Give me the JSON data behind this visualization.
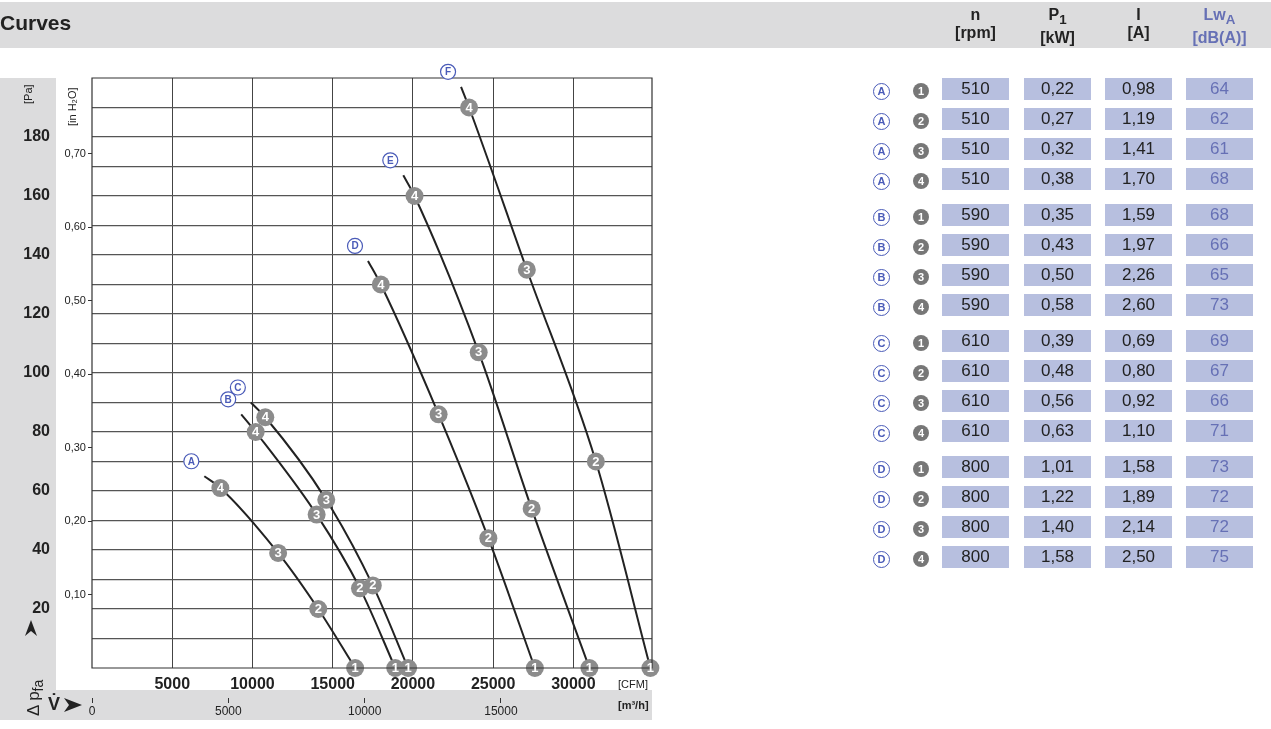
{
  "chart_data": [
    {
      "type": "line",
      "title": "Curves",
      "xlabel": "V̇",
      "ylabel": "Δ p$_{fa}$",
      "x2label": "[CFM]",
      "y2label": "[in H₂O]",
      "annotations": [
        "[Pa]",
        "[m³/h]",
        {
          "text": "4",
          "x": 8000,
          "y": 61
        },
        {
          "text": "3",
          "x": 11600,
          "y": 39
        },
        {
          "text": "2",
          "x": 14100,
          "y": 20
        },
        {
          "text": "1",
          "x": 16400,
          "y": 0
        },
        {
          "text": "4",
          "x": 10200,
          "y": 80
        },
        {
          "text": "3",
          "x": 14000,
          "y": 52
        },
        {
          "text": "2",
          "x": 16700,
          "y": 27
        },
        {
          "text": "1",
          "x": 18900,
          "y": 0
        },
        {
          "text": "4",
          "x": 10800,
          "y": 85
        },
        {
          "text": "3",
          "x": 14600,
          "y": 57
        },
        {
          "text": "2",
          "x": 17500,
          "y": 28
        },
        {
          "text": "1",
          "x": 19700,
          "y": 0
        },
        {
          "text": "4",
          "x": 18000,
          "y": 130
        },
        {
          "text": "3",
          "x": 21600,
          "y": 86
        },
        {
          "text": "2",
          "x": 24700,
          "y": 44
        },
        {
          "text": "1",
          "x": 27600,
          "y": 0
        },
        {
          "text": "4",
          "x": 20100,
          "y": 160
        },
        {
          "text": "3",
          "x": 24100,
          "y": 107
        },
        {
          "text": "2",
          "x": 27400,
          "y": 54
        },
        {
          "text": "1",
          "x": 31000,
          "y": 0
        },
        {
          "text": "4",
          "x": 23500,
          "y": 190
        },
        {
          "text": "3",
          "x": 27100,
          "y": 135
        },
        {
          "text": "2",
          "x": 31400,
          "y": 70
        },
        {
          "text": "1",
          "x": 34800,
          "y": 0
        }
      ],
      "xlim": [
        0,
        34900
      ],
      "xticks": [
        5000,
        10000,
        15000,
        20000,
        25000,
        30000
      ],
      "x2lim": [
        0,
        20540
      ],
      "x2ticks": [
        0,
        5000,
        10000,
        15000
      ],
      "ylim": [
        0,
        200
      ],
      "yticks": [
        {
          "value": 10,
          "label": null
        },
        20,
        {
          "value": 30,
          "label": null
        },
        40,
        {
          "value": 50,
          "label": null
        },
        60,
        {
          "value": 70,
          "label": null
        },
        80,
        {
          "value": 90,
          "label": null
        },
        100,
        {
          "value": 110,
          "label": null
        },
        120,
        {
          "value": 130,
          "label": null
        },
        140,
        {
          "value": 150,
          "label": null
        },
        160,
        {
          "value": 170,
          "label": null
        },
        180,
        {
          "value": 190,
          "label": null
        }
      ],
      "y2lim": [
        0,
        0.803
      ],
      "y2ticks": [
        {
          "value": 0.1,
          "label": "0,10"
        },
        {
          "value": 0.2,
          "label": "0,20"
        },
        {
          "value": 0.3,
          "label": "0,30"
        },
        {
          "value": 0.4,
          "label": "0,40"
        },
        {
          "value": 0.5,
          "label": "0,50"
        },
        {
          "value": 0.6,
          "label": "0,60"
        },
        {
          "value": 0.7,
          "label": "0,70"
        }
      ],
      "grid": true,
      "legend": false,
      "marker": "circle",
      "line_style": "solid",
      "series": [
        {
          "name": "A",
          "color": "#222222",
          "x": [
            7000,
            8000,
            11600,
            14100,
            16400
          ],
          "values": [
            65,
            61,
            39,
            20,
            0
          ]
        },
        {
          "name": "B",
          "color": "#222222",
          "x": [
            9300,
            10200,
            14000,
            16700,
            18900
          ],
          "values": [
            86,
            80,
            52,
            27,
            0
          ]
        },
        {
          "name": "C",
          "color": "#222222",
          "x": [
            9900,
            10800,
            14600,
            17500,
            19700
          ],
          "values": [
            90,
            85,
            57,
            28,
            0
          ]
        },
        {
          "name": "D",
          "color": "#222222",
          "x": [
            17200,
            18000,
            21600,
            24700,
            27600
          ],
          "values": [
            138,
            130,
            86,
            44,
            0
          ]
        },
        {
          "name": "E",
          "color": "#222222",
          "x": [
            19400,
            20100,
            24100,
            27400,
            31000
          ],
          "values": [
            167,
            160,
            107,
            54,
            0
          ]
        },
        {
          "name": "F",
          "color": "#222222",
          "x": [
            23000,
            23500,
            27100,
            31400,
            34800
          ],
          "values": [
            197,
            190,
            135,
            70,
            0
          ]
        }
      ]
    },
    {
      "type": "other",
      "categories": [
        "n [rpm]",
        "P$_{1}$ [kW]",
        "I [A]",
        "Lw$_{A}$ [dB(A)]"
      ],
      "y_categories": [
        "A 1",
        "A 2",
        "A 3",
        "A 4",
        "B 1",
        "B 2",
        "B 3",
        "B 4",
        "C 1",
        "C 2",
        "C 3",
        "C 4",
        "D 1",
        "D 2",
        "D 3",
        "D 4"
      ],
      "cell_labels": [
        [
          "510",
          "0,22",
          "0,98",
          "64"
        ],
        [
          "510",
          "0,27",
          "1,19",
          "62"
        ],
        [
          "510",
          "0,32",
          "1,41",
          "61"
        ],
        [
          "510",
          "0,38",
          "1,70",
          "68"
        ],
        [
          "590",
          "0,35",
          "1,59",
          "68"
        ],
        [
          "590",
          "0,43",
          "1,97",
          "66"
        ],
        [
          "590",
          "0,50",
          "2,26",
          "65"
        ],
        [
          "590",
          "0,58",
          "2,60",
          "73"
        ],
        [
          "610",
          "0,39",
          "0,69",
          "69"
        ],
        [
          "610",
          "0,48",
          "0,80",
          "67"
        ],
        [
          "610",
          "0,56",
          "0,92",
          "66"
        ],
        [
          "610",
          "0,63",
          "1,10",
          "71"
        ],
        [
          "800",
          "1,01",
          "1,58",
          "73"
        ],
        [
          "800",
          "1,22",
          "1,89",
          "72"
        ],
        [
          "800",
          "1,40",
          "2,14",
          "72"
        ],
        [
          "800",
          "1,58",
          "2,50",
          "75"
        ]
      ]
    }
  ]
}
